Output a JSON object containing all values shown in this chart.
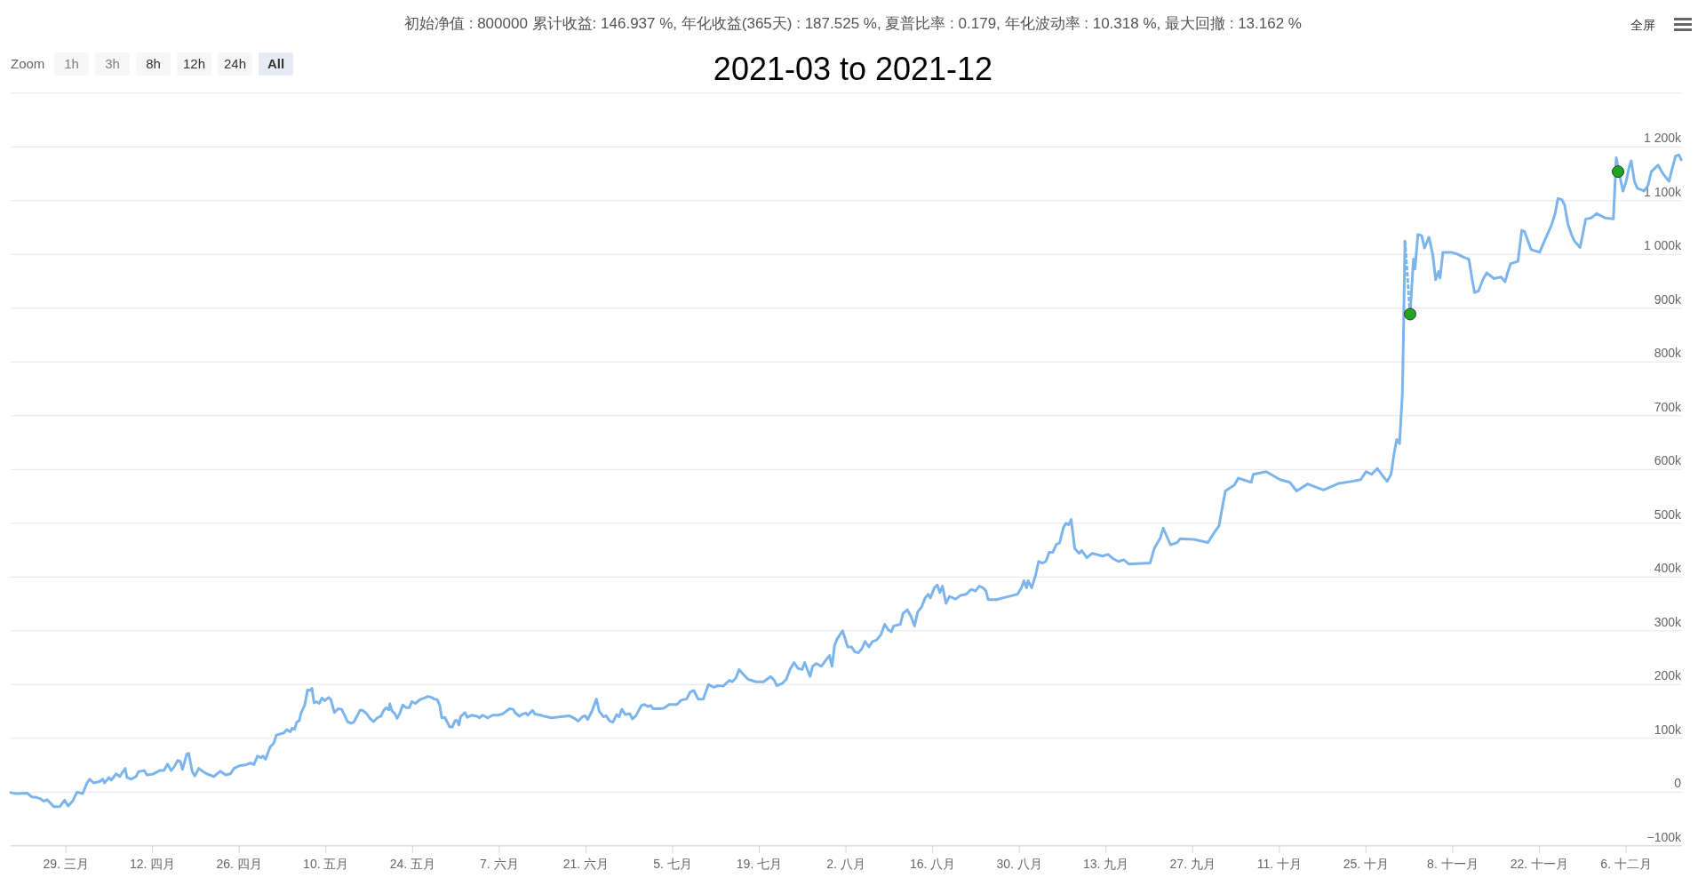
{
  "chart_data": {
    "type": "line",
    "title": "2021-03 to 2021-12",
    "subtitle": "初始净值 : 800000 累计收益: 146.937 %, 年化收益(365天) : 187.525 %, 夏普比率 : 0.179, 年化波动率 : 10.318 %, 最大回撤 : 13.162 %",
    "annotations": [
      "Zoom",
      "1h",
      "3h",
      "8h",
      "12h",
      "24h",
      "All",
      "全屏"
    ],
    "xlim": [
      "2021-03-20T02:00",
      "2021-12-15T01:00"
    ],
    "xticks": [
      {
        "value": "2021-03-29",
        "label": "29. 三月"
      },
      {
        "value": "2021-04-12",
        "label": "12. 四月"
      },
      {
        "value": "2021-04-26",
        "label": "26. 四月"
      },
      {
        "value": "2021-05-10",
        "label": "10. 五月"
      },
      {
        "value": "2021-05-24",
        "label": "24. 五月"
      },
      {
        "value": "2021-06-07",
        "label": "7. 六月"
      },
      {
        "value": "2021-06-21",
        "label": "21. 六月"
      },
      {
        "value": "2021-07-05",
        "label": "5. 七月"
      },
      {
        "value": "2021-07-19",
        "label": "19. 七月"
      },
      {
        "value": "2021-08-02",
        "label": "2. 八月"
      },
      {
        "value": "2021-08-16",
        "label": "16. 八月"
      },
      {
        "value": "2021-08-30",
        "label": "30. 八月"
      },
      {
        "value": "2021-09-13",
        "label": "13. 九月"
      },
      {
        "value": "2021-09-27",
        "label": "27. 九月"
      },
      {
        "value": "2021-10-11",
        "label": "11. 十月"
      },
      {
        "value": "2021-10-25",
        "label": "25. 十月"
      },
      {
        "value": "2021-11-08",
        "label": "8. 十一月"
      },
      {
        "value": "2021-11-22",
        "label": "22. 十一月"
      },
      {
        "value": "2021-12-06",
        "label": "6. 十二月"
      }
    ],
    "ylim": [
      -100000,
      1300000
    ],
    "yticks": [
      {
        "value": -100000,
        "label": "−100k"
      },
      {
        "value": 0,
        "label": "0"
      },
      {
        "value": 100000,
        "label": "100k"
      },
      {
        "value": 200000,
        "label": "200k"
      },
      {
        "value": 300000,
        "label": "300k"
      },
      {
        "value": 400000,
        "label": "400k"
      },
      {
        "value": 500000,
        "label": "500k"
      },
      {
        "value": 600000,
        "label": "600k"
      },
      {
        "value": 700000,
        "label": "700k"
      },
      {
        "value": 800000,
        "label": "800k"
      },
      {
        "value": 900000,
        "label": "900k"
      },
      {
        "value": 1000000,
        "label": "1 000k"
      },
      {
        "value": 1100000,
        "label": "1 100k"
      },
      {
        "value": 1200000,
        "label": "1 200k"
      },
      {
        "value": 1300000,
        "label": null
      }
    ],
    "grid": "y",
    "series": [
      {
        "color": "#7cb5ec",
        "x": [
          "2021-03-20T02:00",
          "2021-03-21T00:00",
          "2021-03-22T18:00",
          "2021-03-23T12:00",
          "2021-03-24T06:00",
          "2021-03-24T19:00",
          "2021-03-25T10:00",
          "2021-03-25T23:00",
          "2021-03-27T01:00",
          "2021-03-28T01:00",
          "2021-03-28T19:00",
          "2021-03-29T09:00",
          "2021-03-30T02:00",
          "2021-03-30T19:00",
          "2021-03-31T17:00",
          "2021-04-01T10:00",
          "2021-04-01T20:00",
          "2021-04-02T12:00",
          "2021-04-03T12:00",
          "2021-04-03T23:00",
          "2021-04-04T06:00",
          "2021-04-04T23:00",
          "2021-04-05T08:00",
          "2021-04-06T03:00",
          "2021-04-06T17:00",
          "2021-04-07T14:00",
          "2021-04-07T21:00",
          "2021-04-08T14:00",
          "2021-04-09T08:00",
          "2021-04-09T18:00",
          "2021-04-10T16:00",
          "2021-04-11T02:00",
          "2021-04-11T23:00",
          "2021-04-13T04:00",
          "2021-04-13T20:00",
          "2021-04-14T10:00",
          "2021-04-15T00:00",
          "2021-04-15T12:00",
          "2021-04-16T02:00",
          "2021-04-16T12:00",
          "2021-04-16T20:00",
          "2021-04-17T13:00",
          "2021-04-17T20:00",
          "2021-04-18T10:00",
          "2021-04-18T20:00",
          "2021-04-19T11:00",
          "2021-04-20T04:00",
          "2021-04-20T18:00",
          "2021-04-21T22:00",
          "2021-04-22T23:00",
          "2021-04-23T19:00",
          "2021-04-24T14:00",
          "2021-04-25T04:00",
          "2021-04-26T01:00",
          "2021-04-27T05:00",
          "2021-04-27T19:00",
          "2021-04-28T09:00",
          "2021-04-28T23:00",
          "2021-04-29T13:00",
          "2021-04-29T20:00",
          "2021-04-30T06:00",
          "2021-05-01T00:00",
          "2021-05-01T14:00",
          "2021-05-02T00:00",
          "2021-05-03T05:00",
          "2021-05-03T16:00",
          "2021-05-04T06:00",
          "2021-05-04T13:00",
          "2021-05-04T23:00",
          "2021-05-05T07:00",
          "2021-05-05T17:00",
          "2021-05-05T23:00",
          "2021-05-06T14:00",
          "2021-05-07T01:00",
          "2021-05-07T11:00",
          "2021-05-07T18:00",
          "2021-05-08T02:00",
          "2021-05-08T12:00",
          "2021-05-08T22:00",
          "2021-05-09T09:00",
          "2021-05-09T19:00",
          "2021-05-10T11:00",
          "2021-05-10T19:00",
          "2021-05-11T09:00",
          "2021-05-11T23:00",
          "2021-05-12T13:00",
          "2021-05-13T00:00",
          "2021-05-13T12:00",
          "2021-05-14T02:00",
          "2021-05-14T12:00",
          "2021-05-14T22:00",
          "2021-05-15T12:00",
          "2021-05-15T23:00",
          "2021-05-16T13:00",
          "2021-05-17T03:00",
          "2021-05-17T17:00",
          "2021-05-18T07:00",
          "2021-05-18T21:00",
          "2021-05-19T08:00",
          "2021-05-19T18:00",
          "2021-05-20T04:00",
          "2021-05-20T08:00",
          "2021-05-20T15:00",
          "2021-05-21T03:00",
          "2021-05-21T12:00",
          "2021-05-21T22:00",
          "2021-05-22T10:00",
          "2021-05-22T23:00",
          "2021-05-23T11:00",
          "2021-05-23T21:00",
          "2021-05-24T11:00",
          "2021-05-25T05:00",
          "2021-05-25T22:00",
          "2021-05-26T12:00",
          "2021-05-27T02:00",
          "2021-05-27T12:00",
          "2021-05-27T23:00",
          "2021-05-28T09:00",
          "2021-05-28T17:00",
          "2021-05-29T05:00",
          "2021-05-30T00:00",
          "2021-05-30T10:00",
          "2021-05-30T21:00",
          "2021-05-31T04:00",
          "2021-05-31T12:00",
          "2021-05-31T18:00",
          "2021-06-01T11:00",
          "2021-06-01T20:00",
          "2021-06-02T13:00",
          "2021-06-03T10:00",
          "2021-06-03T19:00",
          "2021-06-04T07:00",
          "2021-06-05T04:00",
          "2021-06-05T22:00",
          "2021-06-06T18:00",
          "2021-06-07T12:00",
          "2021-06-08T02:00",
          "2021-06-08T16:00",
          "2021-06-09T06:00",
          "2021-06-09T13:00",
          "2021-06-10T06:00",
          "2021-06-10T18:00",
          "2021-06-11T07:00",
          "2021-06-11T15:00",
          "2021-06-12T09:00",
          "2021-06-12T19:00",
          "2021-06-13T16:00",
          "2021-06-14T06:00",
          "2021-06-15T10:00",
          "2021-06-18T07:00",
          "2021-06-19T04:00",
          "2021-06-19T18:00",
          "2021-06-20T10:00",
          "2021-06-20T21:00",
          "2021-06-21T07:00",
          "2021-06-21T23:00",
          "2021-06-22T17:00",
          "2021-06-23T04:00",
          "2021-06-23T20:00",
          "2021-06-24T06:00",
          "2021-06-24T20:00",
          "2021-06-25T09:00",
          "2021-06-25T23:00",
          "2021-06-26T09:00",
          "2021-06-26T19:00",
          "2021-06-27T09:00",
          "2021-06-28T02:00",
          "2021-06-28T12:00",
          "2021-06-29T02:00",
          "2021-06-29T23:00",
          "2021-06-30T11:00",
          "2021-07-01T01:00",
          "2021-07-01T11:00",
          "2021-07-01T21:00",
          "2021-07-02T18:00",
          "2021-07-03T14:00",
          "2021-07-04T11:00",
          "2021-07-05T17:00",
          "2021-07-06T09:00",
          "2021-07-07T06:00",
          "2021-07-07T20:00",
          "2021-07-08T10:00",
          "2021-07-09T03:00",
          "2021-07-09T23:00",
          "2021-07-10T19:00",
          "2021-07-11T16:00",
          "2021-07-12T08:00",
          "2021-07-13T04:00",
          "2021-07-14T05:00",
          "2021-07-14T15:00",
          "2021-07-15T05:00",
          "2021-07-15T18:00",
          "2021-07-16T08:00",
          "2021-07-17T04:00",
          "2021-07-18T11:00",
          "2021-07-19T17:00",
          "2021-07-20T20:00",
          "2021-07-21T10:00",
          "2021-07-21T20:00",
          "2021-07-22T17:00",
          "2021-07-23T09:00",
          "2021-07-23T23:00",
          "2021-07-24T15:00",
          "2021-07-25T06:00",
          "2021-07-25T22:00",
          "2021-07-26T08:00",
          "2021-07-27T05:00",
          "2021-07-27T15:00",
          "2021-07-28T05:00",
          "2021-07-29T01:00",
          "2021-07-29T16:00",
          "2021-07-30T08:00",
          "2021-07-30T18:00",
          "2021-07-31T04:00",
          "2021-07-31T14:00",
          "2021-08-01T11:00",
          "2021-08-02T07:00",
          "2021-08-02T22:00",
          "2021-08-03T10:00",
          "2021-08-04T00:00",
          "2021-08-04T14:00",
          "2021-08-05T02:00",
          "2021-08-05T17:00",
          "2021-08-06T07:00",
          "2021-08-06T23:00",
          "2021-08-07T16:00",
          "2021-08-08T06:00",
          "2021-08-08T20:00",
          "2021-08-09T08:00",
          "2021-08-09T17:00",
          "2021-08-10T19:00",
          "2021-08-11T05:00",
          "2021-08-11T22:00",
          "2021-08-12T12:00",
          "2021-08-13T02:00",
          "2021-08-13T14:00",
          "2021-08-14T05:00",
          "2021-08-14T19:00",
          "2021-08-15T07:00",
          "2021-08-15T15:00",
          "2021-08-16T07:00",
          "2021-08-16T18:00",
          "2021-08-17T04:00",
          "2021-08-17T14:00",
          "2021-08-18T04:00",
          "2021-08-18T17:00",
          "2021-08-19T17:00",
          "2021-08-20T13:00",
          "2021-08-21T10:00",
          "2021-08-22T06:00",
          "2021-08-22T22:00",
          "2021-08-23T13:00",
          "2021-08-24T03:00",
          "2021-08-24T15:00",
          "2021-08-24T23:00",
          "2021-08-26T08:00",
          "2021-08-27T08:00",
          "2021-08-29T01:00",
          "2021-08-29T17:00",
          "2021-08-30T08:00",
          "2021-08-30T18:00",
          "2021-08-31T04:00",
          "2021-08-31T10:00",
          "2021-09-01T00:00",
          "2021-09-01T15:00",
          "2021-09-02T03:00",
          "2021-09-02T17:00",
          "2021-09-03T07:00",
          "2021-09-03T20:00",
          "2021-09-04T10:00",
          "2021-09-05T00:00",
          "2021-09-05T12:00",
          "2021-09-06T03:00",
          "2021-09-06T13:00",
          "2021-09-06T23:00",
          "2021-09-07T09:00",
          "2021-09-07T23:00",
          "2021-09-08T16:00",
          "2021-09-09T02:00",
          "2021-09-09T22:00",
          "2021-09-10T19:00",
          "2021-09-12T11:00",
          "2021-09-13T08:00",
          "2021-09-14T04:00",
          "2021-09-15T00:00",
          "2021-09-15T21:00",
          "2021-09-16T17:00",
          "2021-09-20T03:00",
          "2021-09-20T19:00",
          "2021-09-21T19:00",
          "2021-09-22T06:00",
          "2021-09-23T10:00",
          "2021-09-24T12:00",
          "2021-09-24T23:00",
          "2021-09-27T05:00",
          "2021-09-29T11:00",
          "2021-09-30T12:00",
          "2021-10-01T06:00",
          "2021-10-01T21:00",
          "2021-10-02T07:00",
          "2021-10-03T18:00",
          "2021-10-04T09:00",
          "2021-10-06T11:00",
          "2021-10-06T19:00",
          "2021-10-08T21:00",
          "2021-10-11T03:00",
          "2021-10-12T17:00",
          "2021-10-13T19:00",
          "2021-10-15T14:00",
          "2021-10-18T03:00",
          "2021-10-20T13:00",
          "2021-10-22T19:00",
          "2021-10-24T03:00",
          "2021-10-25T00:00",
          "2021-10-25T22:00",
          "2021-10-26T20:00",
          "2021-10-27T17:00",
          "2021-10-28T10:00",
          "2021-10-29T01:00",
          "2021-10-29T12:00",
          "2021-10-29T23:00",
          "2021-10-30T10:00",
          "2021-10-30T21:00",
          "2021-10-31T01:00",
          "2021-10-31T07:00"
        ],
        "values": [
          -1000,
          -3000,
          -2000,
          -9000,
          -10000,
          -12000,
          -17000,
          -14000,
          -27000,
          -27000,
          -15000,
          -26000,
          -17000,
          0,
          -3000,
          17000,
          24000,
          17000,
          20000,
          24000,
          17000,
          27000,
          22000,
          34000,
          29000,
          44000,
          27000,
          24000,
          29000,
          38000,
          40000,
          32000,
          33000,
          40000,
          40000,
          52000,
          40000,
          47000,
          59000,
          57000,
          42000,
          71000,
          72000,
          38000,
          30000,
          44000,
          38000,
          34000,
          29000,
          39000,
          32000,
          34000,
          44000,
          49000,
          51000,
          54000,
          51000,
          67000,
          64000,
          67000,
          61000,
          84000,
          91000,
          106000,
          110000,
          116000,
          112000,
          119000,
          117000,
          130000,
          133000,
          146000,
          162000,
          190000,
          189000,
          193000,
          166000,
          168000,
          165000,
          175000,
          170000,
          176000,
          172000,
          148000,
          155000,
          154000,
          143000,
          131000,
          128000,
          130000,
          139000,
          152000,
          152000,
          146000,
          137000,
          131000,
          138000,
          141000,
          152000,
          157000,
          153000,
          164000,
          152000,
          146000,
          137000,
          146000,
          162000,
          157000,
          157000,
          168000,
          165000,
          172000,
          175000,
          178000,
          176000,
          173000,
          172000,
          162000,
          138000,
          139000,
          121000,
          121000,
          133000,
          133000,
          125000,
          140000,
          148000,
          139000,
          143000,
          141000,
          138000,
          143000,
          138000,
          143000,
          143000,
          145000,
          150000,
          155000,
          154000,
          148000,
          141000,
          145000,
          147000,
          143000,
          152000,
          145000,
          143000,
          141000,
          138000,
          142000,
          137000,
          132000,
          140000,
          142000,
          135000,
          150000,
          173000,
          150000,
          140000,
          142000,
          132000,
          130000,
          144000,
          140000,
          154000,
          144000,
          146000,
          136000,
          142000,
          161000,
          163000,
          159000,
          161000,
          155000,
          155000,
          156000,
          163000,
          163000,
          171000,
          173000,
          186000,
          189000,
          173000,
          173000,
          200000,
          195000,
          198000,
          197000,
          208000,
          205000,
          212000,
          228000,
          220000,
          210000,
          205000,
          205000,
          215000,
          208000,
          198000,
          202000,
          210000,
          228000,
          241000,
          230000,
          228000,
          241000,
          215000,
          234000,
          239000,
          234000,
          244000,
          254000,
          234000,
          273000,
          285000,
          300000,
          270000,
          270000,
          261000,
          259000,
          267000,
          280000,
          270000,
          280000,
          283000,
          293000,
          312000,
          302000,
          298000,
          309000,
          312000,
          332000,
          339000,
          327000,
          309000,
          335000,
          344000,
          361000,
          368000,
          361000,
          380000,
          385000,
          371000,
          383000,
          351000,
          364000,
          359000,
          366000,
          368000,
          377000,
          374000,
          383000,
          380000,
          374000,
          358000,
          358000,
          361000,
          366000,
          368000,
          380000,
          393000,
          380000,
          393000,
          380000,
          403000,
          429000,
          426000,
          429000,
          446000,
          446000,
          461000,
          463000,
          492000,
          500000,
          497000,
          507000,
          453000,
          444000,
          449000,
          436000,
          444000,
          439000,
          442000,
          434000,
          429000,
          432000,
          424000,
          426000,
          453000,
          473000,
          491000,
          460000,
          464000,
          471000,
          470000,
          464000,
          483000,
          495000,
          535000,
          560000,
          571000,
          584000,
          576000,
          591000,
          596000,
          581000,
          576000,
          560000,
          573000,
          562000,
          574000,
          578000,
          581000,
          596000,
          591000,
          602000,
          588000,
          578000,
          591000,
          627000,
          656000,
          648000,
          741000,
          844000,
          1025000
        ]
      },
      {
        "type": "line",
        "line_style": "dashed",
        "color": "#7cb5ec",
        "x": [
          "2021-10-31T07:00",
          "2021-11-01T03:00"
        ],
        "values": [
          1025000,
          889000
        ]
      },
      {
        "color": "#7cb5ec",
        "x": [
          "2021-11-01T03:00",
          "2021-11-01T16:00",
          "2021-11-01T22:00",
          "2021-11-02T09:00",
          "2021-11-03T00:00",
          "2021-11-03T11:00",
          "2021-11-04T04:00",
          "2021-11-04T19:00",
          "2021-11-05T06:00",
          "2021-11-05T17:00",
          "2021-11-05T23:00",
          "2021-11-06T10:00",
          "2021-11-07T18:00",
          "2021-11-08T16:00",
          "2021-11-09T22:00",
          "2021-11-10T15:00",
          "2021-11-11T02:00",
          "2021-11-11T13:00",
          "2021-11-12T04:00",
          "2021-11-12T21:00",
          "2021-11-13T12:00",
          "2021-11-14T16:00",
          "2021-11-15T20:00",
          "2021-11-16T11:00",
          "2021-11-16T22:00",
          "2021-11-17T09:00",
          "2021-11-18T13:00",
          "2021-11-19T04:00",
          "2021-11-19T15:00",
          "2021-11-20T16:00",
          "2021-11-22T01:00",
          "2021-11-23T05:00",
          "2021-11-23T22:00",
          "2021-11-24T13:00",
          "2021-11-25T00:00",
          "2021-11-25T15:00",
          "2021-11-26T02:00",
          "2021-11-26T15:00",
          "2021-11-27T06:00",
          "2021-11-27T16:00",
          "2021-11-28T14:00",
          "2021-11-29T12:00",
          "2021-11-30T09:00",
          "2021-12-01T06:00",
          "2021-12-02T15:00",
          "2021-12-03T23:00",
          "2021-12-04T10:00",
          "2021-12-05T01:00",
          "2021-12-05T12:00",
          "2021-12-05T23:00",
          "2021-12-06T12:00",
          "2021-12-06T20:00",
          "2021-12-07T09:00",
          "2021-12-07T20:00",
          "2021-12-08T22:00",
          "2021-12-09T13:00",
          "2021-12-10T02:00",
          "2021-12-11T04:00",
          "2021-12-12T01:00",
          "2021-12-12T23:00",
          "2021-12-13T09:00",
          "2021-12-14T00:00",
          "2021-12-14T13:00",
          "2021-12-14T22:00"
        ],
        "values": [
          889000,
          991000,
          973000,
          1037000,
          1035000,
          1012000,
          1032000,
          999000,
          953000,
          968000,
          956000,
          1004000,
          1004000,
          1001000,
          994000,
          991000,
          958000,
          929000,
          932000,
          953000,
          966000,
          955000,
          958000,
          949000,
          968000,
          983000,
          987000,
          1045000,
          1042000,
          1009000,
          1004000,
          1035000,
          1053000,
          1076000,
          1104000,
          1102000,
          1092000,
          1056000,
          1035000,
          1025000,
          1013000,
          1066000,
          1068000,
          1076000,
          1068000,
          1066000,
          1180000,
          1143000,
          1118000,
          1133000,
          1162000,
          1174000,
          1135000,
          1123000,
          1118000,
          1128000,
          1154000,
          1166000,
          1149000,
          1136000,
          1156000,
          1183000,
          1185000,
          1176000
        ]
      },
      {
        "type": "scatter",
        "marker": "circle",
        "color": "#1fa51f",
        "x": [
          "2021-11-01T03:00",
          "2021-12-04T17:00"
        ],
        "values": [
          889000,
          1154000
        ]
      }
    ]
  }
}
